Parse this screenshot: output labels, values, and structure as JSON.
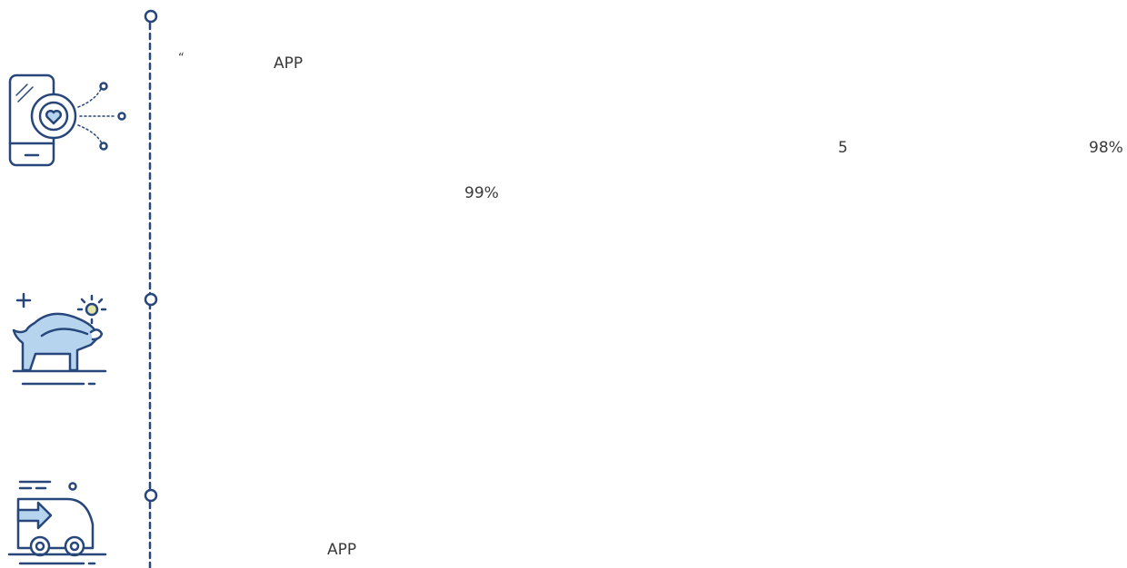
{
  "blocks": [
    {
      "fragments": [
        "“",
        "APP",
        "5",
        "98%",
        "99%"
      ]
    },
    {
      "fragments": [
        "APP"
      ]
    }
  ]
}
